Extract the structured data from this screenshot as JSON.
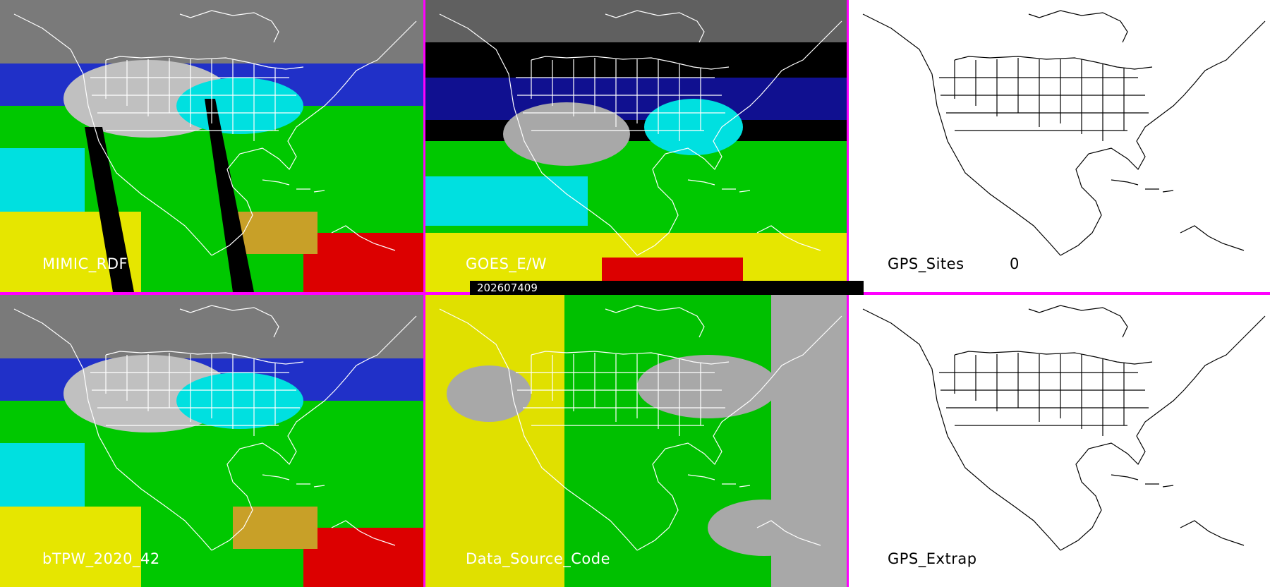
{
  "panels": [
    {
      "id": "p1",
      "label": "MIMIC_RDF"
    },
    {
      "id": "p2",
      "label": "GOES_E/W"
    },
    {
      "id": "p3",
      "label": "GPS_Sites",
      "count": "0"
    },
    {
      "id": "p4",
      "label": "bTPW_2020_42"
    },
    {
      "id": "p5",
      "label": "Data_Source_Code"
    },
    {
      "id": "p6",
      "label": "GPS_Extrap"
    }
  ],
  "timestamp": "202607409",
  "colors": {
    "divider": "#ff00ff",
    "tpw_scale": [
      "#6e6e6e",
      "#a8a8a8",
      "#ffffff",
      "#0a0a8c",
      "#2032d8",
      "#00e6e6",
      "#00c8c8",
      "#00d200",
      "#3cf03c",
      "#c8a028",
      "#e6e600",
      "#dc0000"
    ],
    "source_scale": [
      "#e0e000",
      "#00c000",
      "#a8a8a8",
      "#000000"
    ]
  }
}
